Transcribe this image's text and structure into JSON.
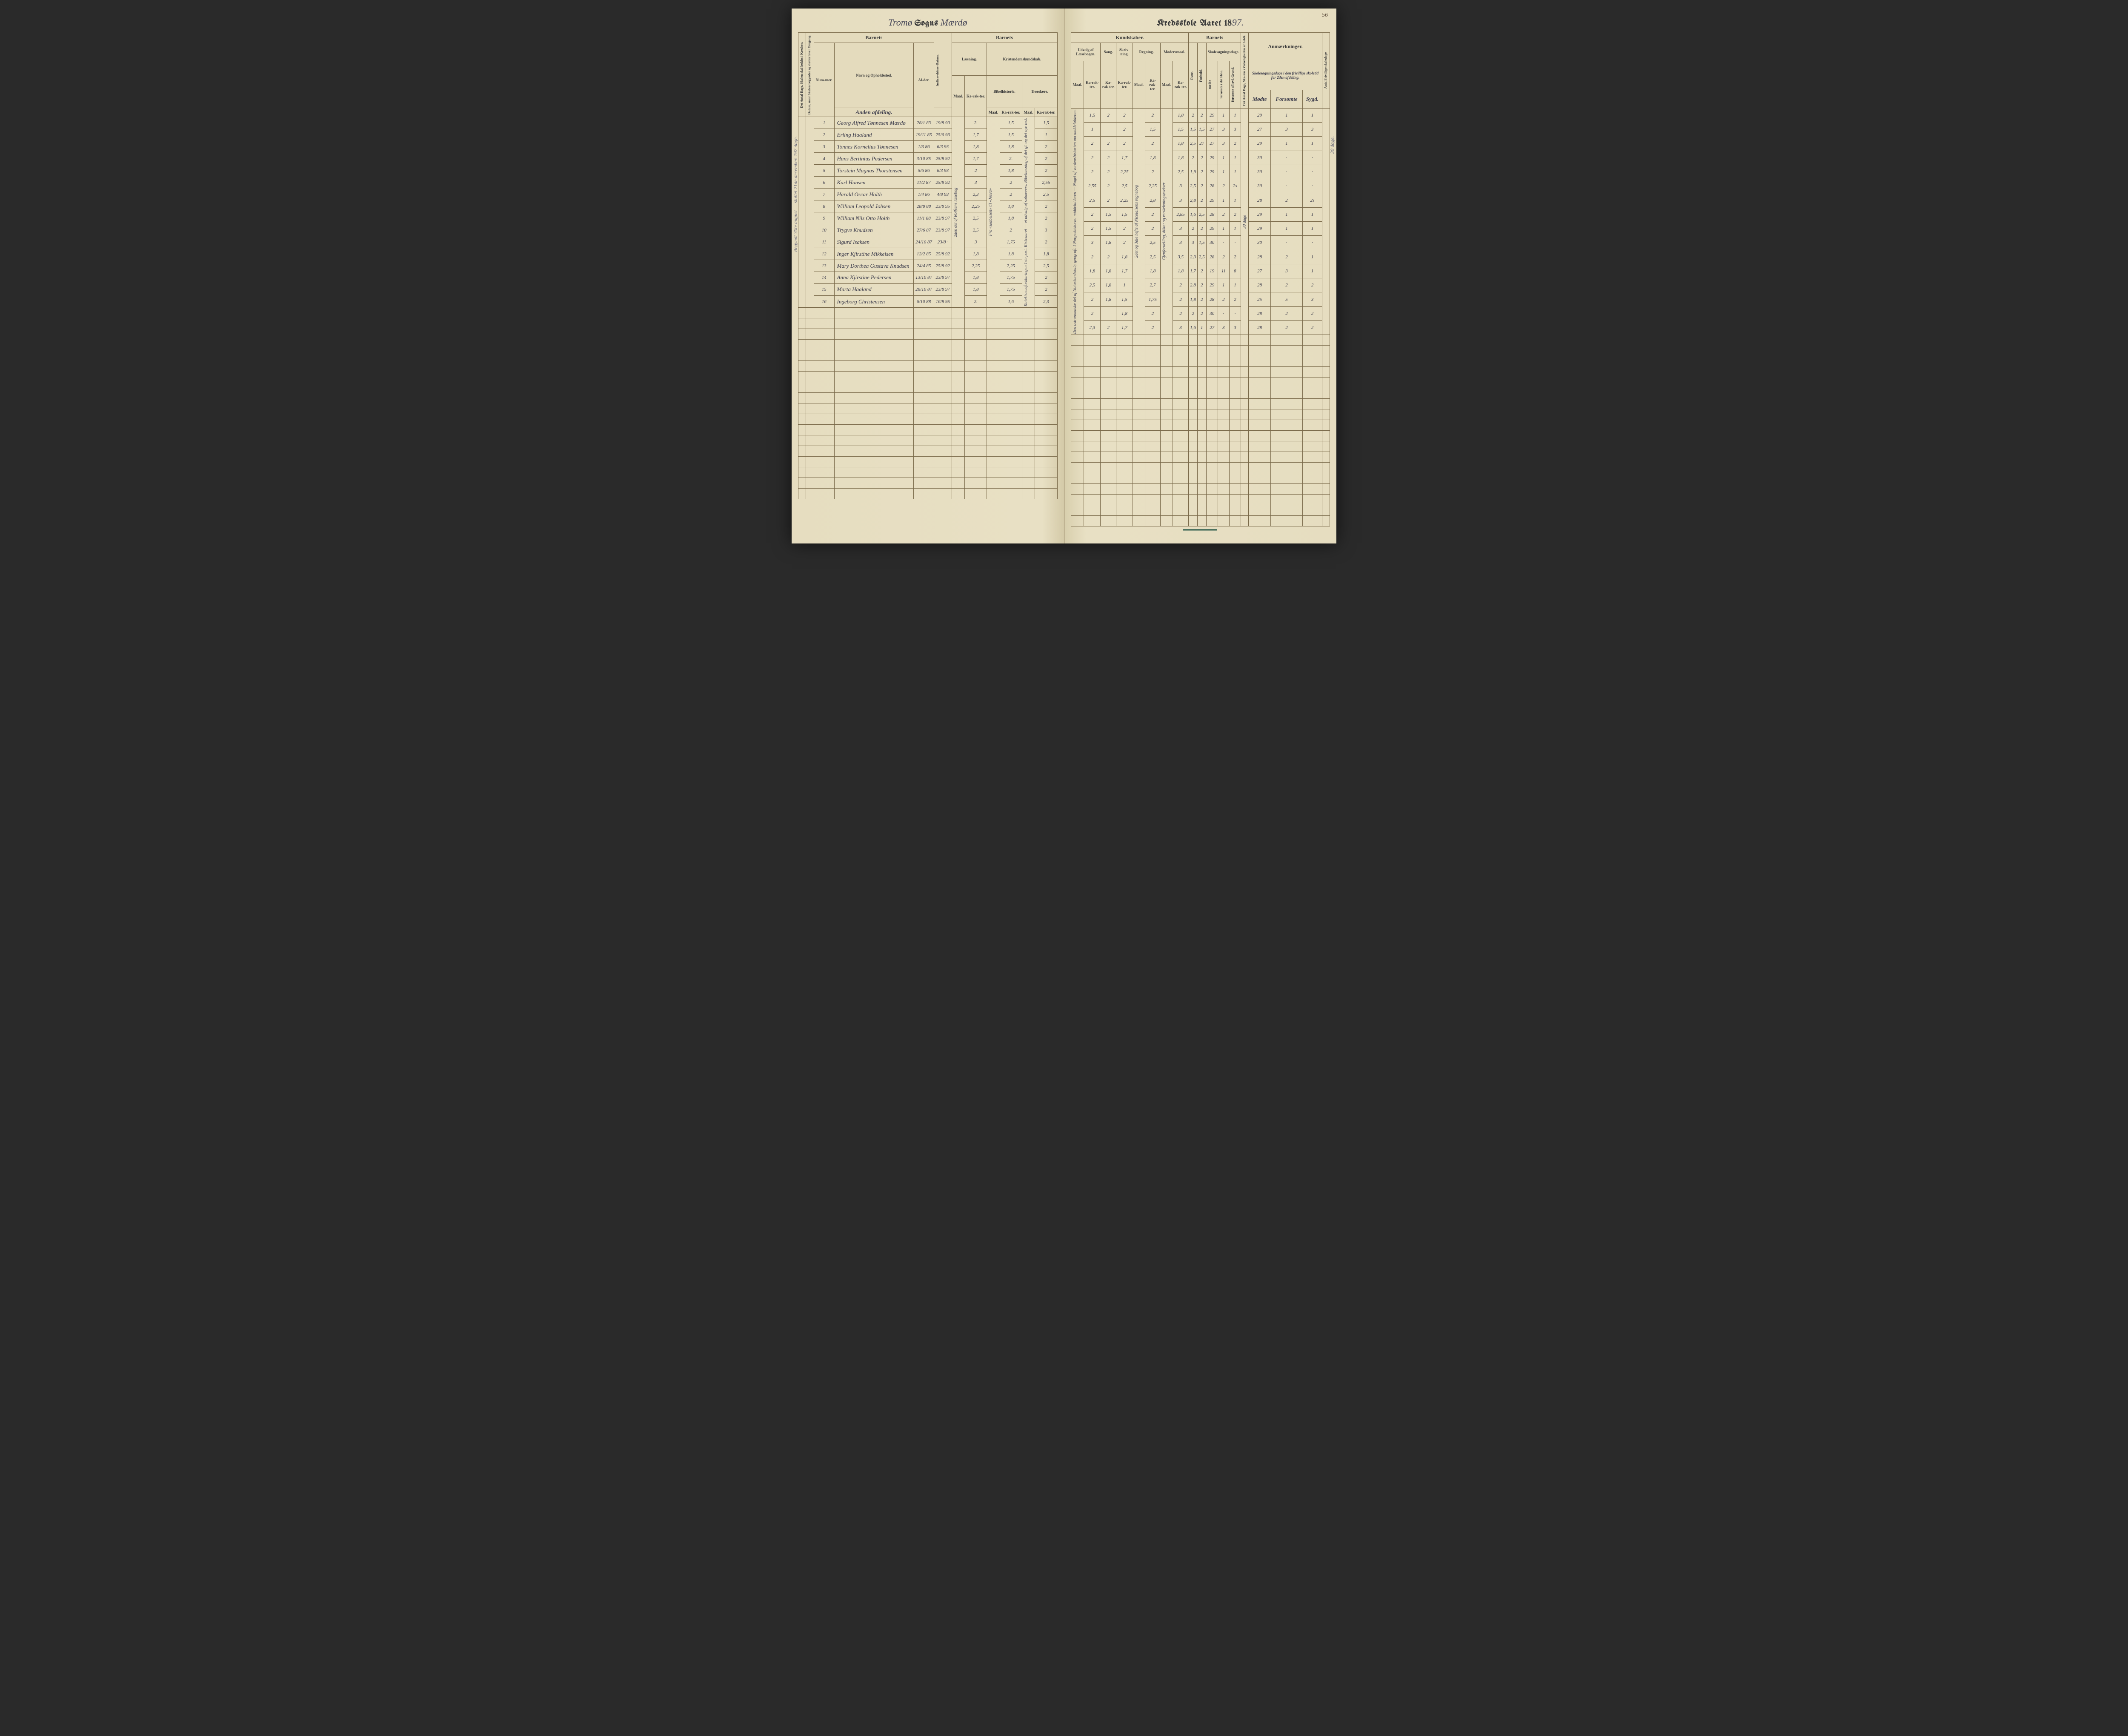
{
  "page_number": "56",
  "header_left": {
    "script_prefix": "Tromø",
    "printed_mid": "Sogns",
    "script_suffix": "Mærdø"
  },
  "header_right": {
    "printed": "Kredsskole Aaret 18",
    "script_year": "97."
  },
  "left_table": {
    "group_barnets": "Barnets",
    "col_days_rot": "Det Antal Dage, Skolen skal holdes i Kredsen.",
    "col_term_rot": "Datum, naar Skolen begynder og slutter hver Omgang.",
    "col_nummer": "Num-mer.",
    "col_navn": "Navn og Opholdssted.",
    "navn_subtitle": "Anden afdeling.",
    "col_alder": "Al-der.",
    "col_indtr": "Indtræ-delses-Datum.",
    "group_laesning": "Læsning.",
    "group_kristen": "Kristendomskundskab.",
    "sub_bibel": "Bibelhistorie.",
    "sub_troes": "Troeslære.",
    "col_maal": "Maal.",
    "col_kar": "Ka-rak-ter."
  },
  "right_table": {
    "group_kundskaber": "Kundskaber.",
    "group_barnets": "Barnets",
    "group_udvalg": "Udvalg af Læsebogen.",
    "group_sang": "Sang.",
    "group_skriv": "Skriv-ning.",
    "group_regning": "Regning.",
    "group_modersmaal": "Modersmaal.",
    "group_skolesogn": "Skolesøgningsdage.",
    "col_maal": "Maal.",
    "col_kar": "Ka-rak-ter.",
    "col_evne": "Evne.",
    "col_forhold": "Forhold.",
    "col_modte": "mødte",
    "col_fors_hele": "forsømte i det Hele.",
    "col_fors_lov": "forsømte af lovl. Grund.",
    "col_antal_rot": "Det Antal Dage, Sko-len i Virkeligheden er holdt.",
    "group_anm": "Anmærkninger.",
    "anm_subtitle": "Skolesøgningsdage i den frivillige skoletid for 2den afdeling.",
    "anm_sub_modte": "Mødte",
    "anm_sub_fors": "Forsømte",
    "anm_sub_sys": "Sygd.",
    "col_far_rot": "Antal frivillige skoledage"
  },
  "margin_left": "Begyndt 30te august — sluttet 21de december. 192 dage.",
  "margin_right": "30 dage.",
  "rows": [
    {
      "n": "1",
      "name": "Georg Alfred Tønnesen Mærdø",
      "alder": "28/1 83",
      "indtr": "19/8 90",
      "l_m": "",
      "l_k": "2.",
      "b_m": "",
      "b_k": "1,5",
      "u_m": "",
      "u_k": "1,5",
      "sa": "2",
      "sk": "2",
      "r_m": "",
      "r_k": "2",
      "mo_m": "",
      "mo_k": "1,8",
      "ev": "2",
      "fo": "2",
      "md": "29",
      "fh": "1",
      "fl": "1",
      "a1": "29",
      "a2": "1",
      "a3": "1"
    },
    {
      "n": "2",
      "name": "Erling Haaland",
      "alder": "19/11 85",
      "indtr": "25/6 93",
      "l_m": "",
      "l_k": "1,7",
      "b_m": "",
      "b_k": "1,5",
      "u_m": "",
      "u_k": "1",
      "sa": "",
      "sk": "2",
      "r_m": "",
      "r_k": "1,5",
      "mo_m": "",
      "mo_k": "1,5",
      "ev": "1,5",
      "fo": "1,5",
      "md": "27",
      "fh": "3",
      "fl": "3",
      "a1": "27",
      "a2": "3",
      "a3": "3"
    },
    {
      "n": "3",
      "name": "Tonnes Kornelius Tønnesen",
      "alder": "1/3 86",
      "indtr": "6/3 93",
      "l_m": "",
      "l_k": "1,8",
      "b_m": "",
      "b_k": "1,8",
      "u_m": "",
      "u_k": "2",
      "sa": "2",
      "sk": "2",
      "r_m": "",
      "r_k": "2",
      "mo_m": "",
      "mo_k": "1,8",
      "ev": "2,5",
      "fo": "27",
      "md": "27",
      "fh": "3",
      "fl": "2",
      "a1": "29",
      "a2": "1",
      "a3": "1"
    },
    {
      "n": "4",
      "name": "Hans Bertinius Pedersen",
      "alder": "3/10 85",
      "indtr": "25/8 92",
      "l_m": "",
      "l_k": "1,7",
      "b_m": "",
      "b_k": "2.",
      "u_m": "",
      "u_k": "2",
      "sa": "2",
      "sk": "1,7",
      "r_m": "",
      "r_k": "1,8",
      "mo_m": "",
      "mo_k": "1,8",
      "ev": "2",
      "fo": "2",
      "md": "29",
      "fh": "1",
      "fl": "1",
      "a1": "30",
      "a2": "·",
      "a3": "·"
    },
    {
      "n": "5",
      "name": "Torstein Magnus Thorstensen",
      "alder": "5/6 86",
      "indtr": "6/3 93",
      "l_m": "",
      "l_k": "2",
      "b_m": "",
      "b_k": "1,8",
      "u_m": "",
      "u_k": "2",
      "sa": "2",
      "sk": "2,25",
      "r_m": "",
      "r_k": "2",
      "mo_m": "",
      "mo_k": "2,5",
      "ev": "1,9",
      "fo": "2",
      "md": "29",
      "fh": "1",
      "fl": "1",
      "a1": "30",
      "a2": "·",
      "a3": "·"
    },
    {
      "n": "6",
      "name": "Karl Hansen",
      "alder": "11/2 87",
      "indtr": "25/8 92",
      "l_m": "",
      "l_k": "3",
      "b_m": "",
      "b_k": "2",
      "u_m": "",
      "u_k": "2,55",
      "sa": "2",
      "sk": "2,5",
      "r_m": "",
      "r_k": "2,25",
      "mo_m": "",
      "mo_k": "3",
      "ev": "2,5",
      "fo": "2",
      "md": "28",
      "fh": "2",
      "fl": "2s",
      "a1": "30",
      "a2": "·",
      "a3": "·"
    },
    {
      "n": "7",
      "name": "Harald Oscar Holth",
      "alder": "1/4 86",
      "indtr": "4/8 93",
      "l_m": "",
      "l_k": "2,3",
      "b_m": "",
      "b_k": "2",
      "u_m": "",
      "u_k": "2,5",
      "sa": "2",
      "sk": "2,25",
      "r_m": "",
      "r_k": "2,8",
      "mo_m": "",
      "mo_k": "3",
      "ev": "2,8",
      "fo": "2",
      "md": "29",
      "fh": "1",
      "fl": "1",
      "a1": "28",
      "a2": "2",
      "a3": "2s"
    },
    {
      "n": "8",
      "name": "William Leopold Jobsen",
      "alder": "28/8 88",
      "indtr": "23/8 95",
      "l_m": "",
      "l_k": "2,25",
      "b_m": "",
      "b_k": "1,8",
      "u_m": "",
      "u_k": "2",
      "sa": "1,5",
      "sk": "1,5",
      "r_m": "",
      "r_k": "2",
      "mo_m": "",
      "mo_k": "2,85",
      "ev": "1,6",
      "fo": "2,5",
      "md": "28",
      "fh": "2",
      "fl": "2",
      "a1": "29",
      "a2": "1",
      "a3": "1"
    },
    {
      "n": "9",
      "name": "William Nils Otto Holth",
      "alder": "11/1 88",
      "indtr": "23/8 97",
      "l_m": "",
      "l_k": "2,5",
      "b_m": "",
      "b_k": "1,8",
      "u_m": "",
      "u_k": "2",
      "sa": "1,5",
      "sk": "2",
      "r_m": "",
      "r_k": "2",
      "mo_m": "",
      "mo_k": "3",
      "ev": "2",
      "fo": "2",
      "md": "29",
      "fh": "1",
      "fl": "1",
      "a1": "29",
      "a2": "1",
      "a3": "1"
    },
    {
      "n": "10",
      "name": "Trygve Knudsen",
      "alder": "27/6 87",
      "indtr": "23/8 97",
      "l_m": "",
      "l_k": "2,5",
      "b_m": "",
      "b_k": "2",
      "u_m": "",
      "u_k": "3",
      "sa": "1,8",
      "sk": "2",
      "r_m": "",
      "r_k": "2,5",
      "mo_m": "",
      "mo_k": "3",
      "ev": "3",
      "fo": "1,5",
      "md": "30",
      "fh": "·",
      "fl": "·",
      "a1": "30",
      "a2": "·",
      "a3": "·"
    },
    {
      "n": "11",
      "name": "Sigurd Isaksen",
      "alder": "24/10 87",
      "indtr": "23/8 ·",
      "l_m": "",
      "l_k": "3",
      "b_m": "",
      "b_k": "1,75",
      "u_m": "",
      "u_k": "2",
      "sa": "2",
      "sk": "1,8",
      "r_m": "",
      "r_k": "2,5",
      "mo_m": "",
      "mo_k": "3,5",
      "ev": "2,3",
      "fo": "2,5",
      "md": "28",
      "fh": "2",
      "fl": "2",
      "a1": "28",
      "a2": "2",
      "a3": "1"
    },
    {
      "n": "12",
      "name": "Inger Kjirstine Mikkelsen",
      "alder": "12/2 85",
      "indtr": "25/8 92",
      "l_m": "",
      "l_k": "1,8",
      "b_m": "",
      "b_k": "1,8",
      "u_m": "",
      "u_k": "1,8",
      "sa": "1,8",
      "sk": "1,7",
      "r_m": "",
      "r_k": "1,8",
      "mo_m": "",
      "mo_k": "1,8",
      "ev": "1,7",
      "fo": "2",
      "md": "19",
      "fh": "11",
      "fl": "8",
      "a1": "27",
      "a2": "3",
      "a3": "1"
    },
    {
      "n": "13",
      "name": "Mary Dorthea Gustava Knudsen",
      "alder": "24/4 85",
      "indtr": "25/8 92",
      "l_m": "",
      "l_k": "2,25",
      "b_m": "",
      "b_k": "2,25",
      "u_m": "",
      "u_k": "2,5",
      "sa": "1,8",
      "sk": "1",
      "r_m": "",
      "r_k": "2,7",
      "mo_m": "",
      "mo_k": "2",
      "ev": "2,8",
      "fo": "2",
      "md": "29",
      "fh": "1",
      "fl": "1",
      "a1": "28",
      "a2": "2",
      "a3": "2"
    },
    {
      "n": "14",
      "name": "Anna Kjirstine Pedersen",
      "alder": "13/10 87",
      "indtr": "23/8 97",
      "l_m": "",
      "l_k": "1,8",
      "b_m": "",
      "b_k": "1,75",
      "u_m": "",
      "u_k": "2",
      "sa": "1,8",
      "sk": "1,5",
      "r_m": "",
      "r_k": "1,75",
      "mo_m": "",
      "mo_k": "2",
      "ev": "1,8",
      "fo": "2",
      "md": "28",
      "fh": "2",
      "fl": "2",
      "a1": "25",
      "a2": "5",
      "a3": "3"
    },
    {
      "n": "15",
      "name": "Marta Haaland",
      "alder": "26/10 87",
      "indtr": "23/8 97",
      "l_m": "",
      "l_k": "1,8",
      "b_m": "",
      "b_k": "1,75",
      "u_m": "",
      "u_k": "2",
      "sa": "",
      "sk": "1,8",
      "r_m": "",
      "r_k": "2",
      "mo_m": "",
      "mo_k": "2",
      "ev": "2",
      "fo": "2",
      "md": "30",
      "fh": "·",
      "fl": "·",
      "a1": "28",
      "a2": "2",
      "a3": "2"
    },
    {
      "n": "16",
      "name": "Ingeborg Christensen",
      "alder": "6/10 88",
      "indtr": "16/8 95",
      "l_m": "",
      "l_k": "2.",
      "b_m": "",
      "b_k": "1,6",
      "u_m": "",
      "u_k": "2,3",
      "sa": "2",
      "sk": "1,7",
      "r_m": "",
      "r_k": "2",
      "mo_m": "",
      "mo_k": "3",
      "ev": "1,6",
      "fo": "1",
      "md": "27",
      "fh": "3",
      "fl": "3",
      "a1": "28",
      "a2": "2",
      "a3": "2"
    }
  ],
  "col_note_left_rot": "2den del af Rolfsens læsebog",
  "col_note_bibel_rot": "Fra «skabelsen» til «Josva»",
  "col_note_troes_rot": "Katekismusforklaringen 1ste part. Kirkeaaret — et udvalg af salmevers. Bibellæsning af det gl. og det nye test.",
  "col_note_udvalg_rot": "Den astronomiske del af Naturkundskab; geografi. I Norgeshistorie: middelalderen — Noget af verdenshistorien om middelalderen.",
  "col_note_regn_rot": "2det og 3die hefte af Nicolaisens regnebog",
  "col_note_moders_rot": "Gjenfortælling, diktat og retskrivningsøvelser",
  "col_note_antal_rot": "30 dage",
  "empty_row_count": 18
}
